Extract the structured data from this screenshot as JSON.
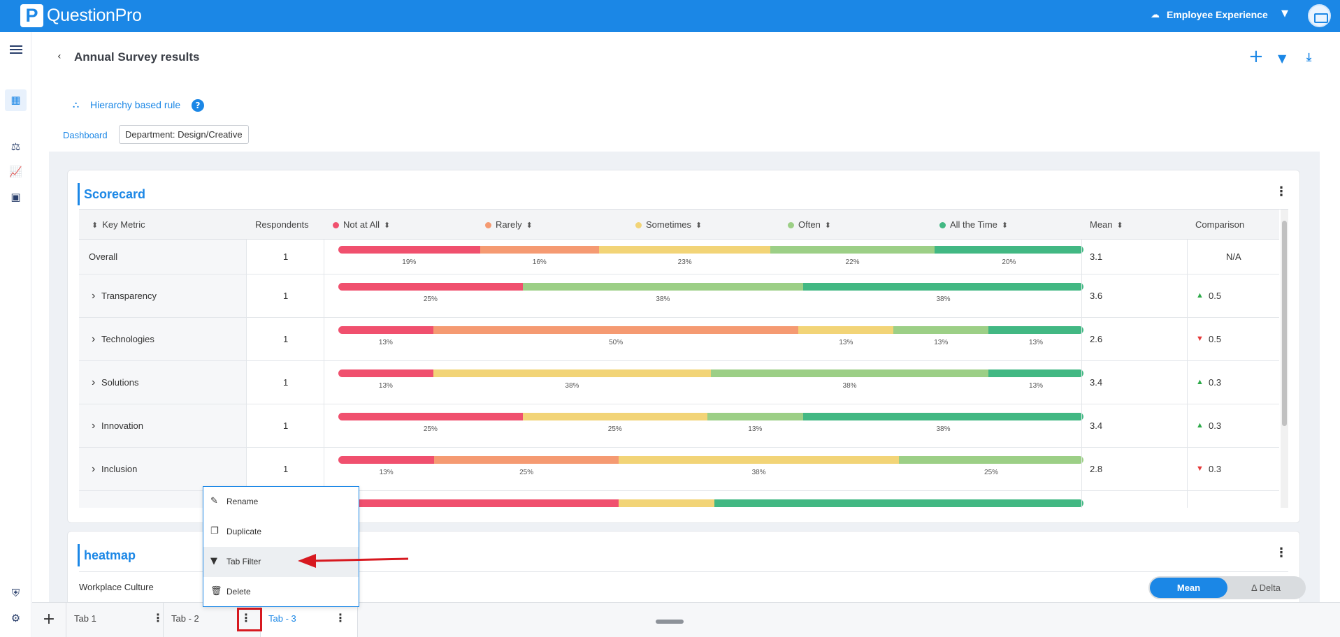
{
  "app": {
    "brand": "QuestionPro",
    "logo_letter": "P",
    "product": "Employee Experience"
  },
  "page": {
    "title": "Annual Survey results",
    "rule_link": "Hierarchy based rule",
    "help": "?",
    "breadcrumb": "Dashboard",
    "filter_chip": "Department: Design/Creative"
  },
  "scorecard": {
    "title": "Scorecard",
    "headers": {
      "key_metric": "Key Metric",
      "respondents": "Respondents",
      "not_at_all": "Not at All",
      "rarely": "Rarely",
      "sometimes": "Sometimes",
      "often": "Often",
      "all_the_time": "All the Time",
      "mean": "Mean",
      "comparison": "Comparison"
    },
    "colors": {
      "not_at_all": "#f0506e",
      "rarely": "#f59a72",
      "sometimes": "#f2d477",
      "often": "#9ccf86",
      "all_the_time": "#42b883"
    },
    "rows": [
      {
        "name": "Overall",
        "respondents": "1",
        "mean": "3.1",
        "comparison": "N/A",
        "trend": "",
        "segments": [
          19,
          16,
          23,
          22,
          20
        ],
        "labels": [
          "19%",
          "16%",
          "23%",
          "22%",
          "20%"
        ]
      },
      {
        "name": "Transparency",
        "respondents": "1",
        "mean": "3.6",
        "comparison": "0.5",
        "trend": "up",
        "segments": [
          25,
          0,
          0,
          38,
          38
        ],
        "labels": [
          "25%",
          "",
          "",
          "38%",
          "38%"
        ]
      },
      {
        "name": "Technologies",
        "respondents": "1",
        "mean": "2.6",
        "comparison": "0.5",
        "trend": "down",
        "segments": [
          13,
          50,
          13,
          13,
          13
        ],
        "labels": [
          "13%",
          "50%",
          "13%",
          "13%",
          "13%"
        ]
      },
      {
        "name": "Solutions",
        "respondents": "1",
        "mean": "3.4",
        "comparison": "0.3",
        "trend": "up",
        "segments": [
          13,
          0,
          38,
          38,
          13
        ],
        "labels": [
          "13%",
          "",
          "38%",
          "38%",
          "13%"
        ]
      },
      {
        "name": "Innovation",
        "respondents": "1",
        "mean": "3.4",
        "comparison": "0.3",
        "trend": "up",
        "segments": [
          25,
          0,
          25,
          13,
          38
        ],
        "labels": [
          "25%",
          "",
          "25%",
          "13%",
          "38%"
        ]
      },
      {
        "name": "Inclusion",
        "respondents": "1",
        "mean": "2.8",
        "comparison": "0.3",
        "trend": "down",
        "segments": [
          13,
          25,
          38,
          25,
          0
        ],
        "labels": [
          "13%",
          "25%",
          "38%",
          "25%",
          ""
        ]
      },
      {
        "name": "",
        "respondents": "",
        "mean": "",
        "comparison": "",
        "trend": "",
        "segments": [
          38,
          0,
          13,
          0,
          50
        ],
        "labels": [
          "",
          "",
          "",
          "",
          ""
        ]
      }
    ]
  },
  "heatmap": {
    "title": "heatmap",
    "subtitle": "Workplace Culture",
    "toggle_on": "Mean",
    "toggle_off": "Δ Delta"
  },
  "tabs": [
    {
      "label": "Tab 1"
    },
    {
      "label": "Tab - 2"
    },
    {
      "label": "Tab - 3"
    }
  ],
  "menu": {
    "items": [
      {
        "label": "Rename"
      },
      {
        "label": "Duplicate"
      },
      {
        "label": "Tab Filter"
      },
      {
        "label": "Delete"
      }
    ]
  }
}
